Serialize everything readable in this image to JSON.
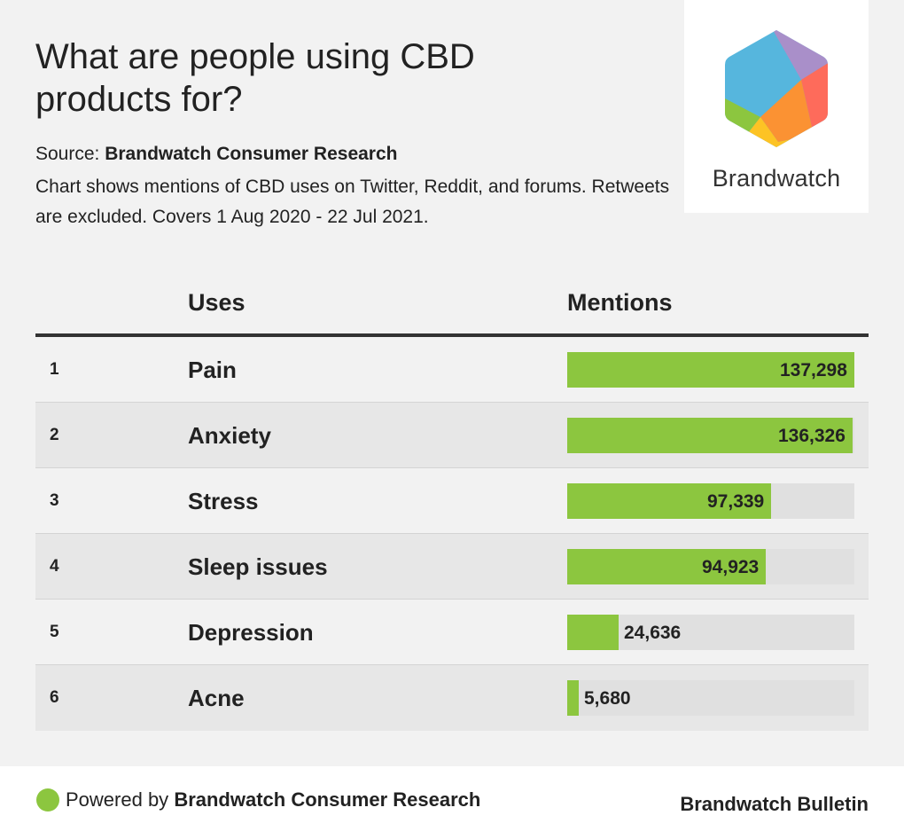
{
  "header": {
    "title": "What are people using CBD products for?",
    "source_prefix": "Source:",
    "source_name": "Brandwatch Consumer Research",
    "description": "Chart shows mentions of CBD uses on Twitter, Reddit, and forums. Retweets are excluded. Covers 1 Aug 2020 - 22 Jul 2021."
  },
  "logo": {
    "wordmark": "Brandwatch",
    "icon": "brandwatch-hexagon-icon"
  },
  "colors": {
    "bar": "#8cc63f",
    "track": "#e0e0e0",
    "logo_blue": "#56b6dd",
    "logo_purple": "#a98fc9",
    "logo_red": "#fe6b5b",
    "logo_orange": "#fb9233",
    "logo_yellow": "#fdc324",
    "logo_green": "#8cc63f"
  },
  "table": {
    "col_uses": "Uses",
    "col_mentions": "Mentions"
  },
  "chart_data": {
    "type": "bar",
    "title": "What are people using CBD products for?",
    "xlabel": "Mentions",
    "ylabel": "Uses",
    "orientation": "horizontal",
    "ranks": [
      "1",
      "2",
      "3",
      "4",
      "5",
      "6"
    ],
    "categories": [
      "Pain",
      "Anxiety",
      "Stress",
      "Sleep issues",
      "Depression",
      "Acne"
    ],
    "values": [
      137298,
      136326,
      97339,
      94923,
      24636,
      5680
    ],
    "value_labels": [
      "137,298",
      "136,326",
      "97,339",
      "94,923",
      "24,636",
      "5,680"
    ],
    "xlim": [
      0,
      137298
    ]
  },
  "footer": {
    "powered_prefix": "Powered by",
    "powered_name": "Brandwatch Consumer Research",
    "bulletin": "Brandwatch Bulletin"
  }
}
